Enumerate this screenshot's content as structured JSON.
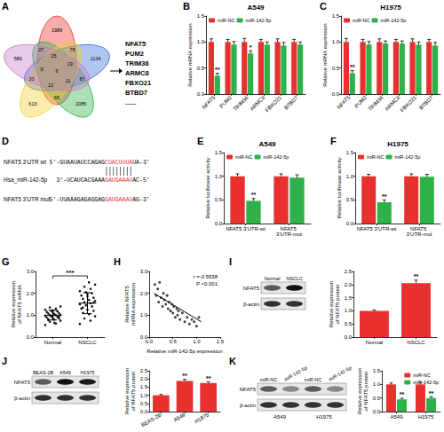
{
  "venn": {
    "panel": "A",
    "counts": [
      1989,
      1134,
      1085,
      613,
      580,
      78,
      87,
      65,
      33,
      27,
      25,
      19,
      11,
      12,
      9,
      6
    ],
    "genes": [
      "NFAT5",
      "PUM2",
      "TRIM36",
      "ARMC8",
      "FBXO21",
      "BTBD7",
      "......"
    ]
  },
  "sequence": {
    "panel": "D",
    "rows": [
      {
        "label": "NFAT5 3'UTR wt",
        "segments": [
          {
            "text": "5'-GUAAUAUCCAGAG"
          },
          {
            "text": "CUACUUUA",
            "color": "#e8312f"
          },
          {
            "text": "UA-3'"
          }
        ]
      },
      {
        "label": "Hsa_miR-142-5p",
        "segments": [
          {
            "text": "3'-UCAUCACGAAA"
          },
          {
            "text": "GAUGAAAU",
            "color": "#e8312f"
          },
          {
            "text": "AC-5'"
          }
        ]
      },
      {
        "label": "NFAT5 3'UTR mut",
        "segments": [
          {
            "text": "5'-UUAAAGAGAGGAG"
          },
          {
            "text": "GAUGAAAU",
            "color": "#e8312f"
          },
          {
            "text": "AG-3'"
          }
        ]
      }
    ]
  },
  "chart_data": [
    {
      "panel": "B",
      "type": "bar",
      "title": "A549",
      "categories": [
        "NFAT5",
        "PUM2",
        "TRIM36",
        "ARMC8",
        "FBXO21",
        "BTBD7"
      ],
      "ylabel": "Relative mRNA expression",
      "ylim": [
        0,
        1.5
      ],
      "yticks": [
        {
          "value": 0,
          "label": "0.0"
        },
        0.5,
        {
          "value": 1,
          "label": "1.0"
        },
        1.5
      ],
      "legend": "upper left",
      "series": [
        {
          "name": "miR-NC",
          "color": "#e8312f",
          "values": [
            1,
            1,
            1,
            1,
            1,
            1
          ],
          "errors": [
            0.06,
            0.05,
            0.07,
            0.05,
            0.06,
            0.05
          ]
        },
        {
          "name": "miR-142-5p",
          "color": "#2fb14a",
          "values": [
            0.35,
            0.95,
            0.78,
            0.95,
            0.93,
            0.95
          ],
          "errors": [
            0.05,
            0.06,
            0.05,
            0.05,
            0.06,
            0.05
          ],
          "significance": [
            "**",
            null,
            "*",
            null,
            null,
            null
          ]
        }
      ]
    },
    {
      "panel": "C",
      "type": "bar",
      "title": "H1975",
      "categories": [
        "NFAT5",
        "PUM2",
        "TRIM36",
        "ARMC8",
        "FBXO21",
        "BTBD7"
      ],
      "ylabel": "Relative mRNA expression",
      "ylim": [
        0,
        1.5
      ],
      "yticks": [
        {
          "value": 0,
          "label": "0.0"
        },
        0.5,
        {
          "value": 1,
          "label": "1.0"
        },
        1.5
      ],
      "legend": "upper left",
      "series": [
        {
          "name": "miR-NC",
          "color": "#e8312f",
          "values": [
            1,
            1,
            1,
            1,
            1,
            1
          ],
          "errors": [
            0.07,
            0.05,
            0.06,
            0.05,
            0.06,
            0.05
          ]
        },
        {
          "name": "miR-142-5p",
          "color": "#2fb14a",
          "values": [
            0.4,
            0.95,
            0.97,
            0.97,
            0.95,
            0.93
          ],
          "errors": [
            0.05,
            0.06,
            0.05,
            0.05,
            0.05,
            0.06
          ],
          "significance": [
            "**",
            null,
            null,
            null,
            null,
            null
          ]
        }
      ]
    },
    {
      "panel": "E",
      "type": "bar",
      "title": "A549",
      "categories": [
        "NFAT5 3'UTR-wt",
        "NFAT5 3'UTR-mut"
      ],
      "ylabel": "Relative luciferase activity",
      "ylim": [
        0,
        1.5
      ],
      "yticks": [
        {
          "value": 0,
          "label": "0.0"
        },
        0.5,
        {
          "value": 1,
          "label": "1.0"
        },
        1.5
      ],
      "legend": "upper left",
      "series": [
        {
          "name": "miR-NC",
          "color": "#e8312f",
          "values": [
            1,
            1
          ],
          "errors": [
            0.05,
            0.05
          ]
        },
        {
          "name": "miR-142-5p",
          "color": "#2fb14a",
          "values": [
            0.48,
            0.97
          ],
          "errors": [
            0.05,
            0.06
          ],
          "significance": [
            "**",
            null
          ]
        }
      ]
    },
    {
      "panel": "F",
      "type": "bar",
      "title": "H1975",
      "categories": [
        "NFAT5 3'UTR-wt",
        "NFAT5 3'UTR-mut"
      ],
      "ylabel": "Relative luciferase activity",
      "ylim": [
        0,
        1.5
      ],
      "yticks": [
        {
          "value": 0,
          "label": "0.0"
        },
        0.5,
        {
          "value": 1,
          "label": "1.0"
        },
        1.5
      ],
      "legend": "upper left",
      "series": [
        {
          "name": "miR-NC",
          "color": "#e8312f",
          "values": [
            1,
            1
          ],
          "errors": [
            0.04,
            0.05
          ]
        },
        {
          "name": "miR-142-5p",
          "color": "#2fb14a",
          "values": [
            0.45,
            0.99
          ],
          "errors": [
            0.05,
            0.05
          ],
          "significance": [
            "**",
            null
          ]
        }
      ]
    },
    {
      "panel": "G",
      "type": "scatter",
      "categories": [
        "Normal",
        "NSCLC"
      ],
      "ylabel": "Relative expression\nof NFAT5 mRNA",
      "ylim": [
        0,
        3
      ],
      "yticks": [
        {
          "value": 0,
          "label": "0.0"
        },
        {
          "value": 1,
          "label": "1.0"
        },
        {
          "value": 2,
          "label": "2.0"
        },
        {
          "value": 3,
          "label": "3.0"
        }
      ],
      "color": "#111111",
      "values": [
        [
          0.55,
          0.62,
          0.7,
          0.75,
          0.8,
          0.82,
          0.85,
          0.88,
          0.9,
          0.92,
          0.95,
          0.97,
          1.0,
          1.0,
          1.02,
          1.05,
          1.08,
          1.1,
          1.12,
          1.15,
          1.18,
          1.2,
          1.25,
          1.3,
          1.35,
          1.4,
          0.65,
          0.78,
          0.93,
          1.22
        ],
        [
          0.6,
          0.75,
          0.85,
          0.95,
          1.05,
          1.1,
          1.2,
          1.25,
          1.3,
          1.4,
          1.45,
          1.5,
          1.55,
          1.6,
          1.65,
          1.7,
          1.75,
          1.8,
          1.85,
          1.9,
          2.0,
          2.05,
          2.1,
          2.2,
          2.3,
          2.4,
          2.5,
          1.35,
          1.58,
          1.95
        ]
      ],
      "means": [
        1.0,
        1.55
      ],
      "sd": [
        0.22,
        0.48
      ],
      "significance": "***"
    },
    {
      "panel": "H",
      "type": "scatter",
      "xlabel": "Relative miR-142-5p expression",
      "ylabel": "Relative NFAT5\nmRNA expression",
      "xlim": [
        0,
        1.5
      ],
      "xticks": [
        {
          "value": 0,
          "label": "0.0"
        },
        0.5,
        {
          "value": 1,
          "label": "1.0"
        },
        1.5
      ],
      "ylim": [
        0,
        3
      ],
      "yticks": [
        {
          "value": 0,
          "label": "0.0"
        },
        {
          "value": 1,
          "label": "1.0"
        },
        {
          "value": 2,
          "label": "2.0"
        },
        {
          "value": 3,
          "label": "3.0"
        }
      ],
      "color": "#111111",
      "x": [
        0.12,
        0.15,
        0.18,
        0.2,
        0.22,
        0.25,
        0.28,
        0.3,
        0.32,
        0.35,
        0.38,
        0.4,
        0.42,
        0.45,
        0.48,
        0.5,
        0.52,
        0.55,
        0.58,
        0.6,
        0.62,
        0.65,
        0.7,
        0.75,
        0.8,
        0.85,
        0.9,
        0.95,
        1.0,
        1.05
      ],
      "values": [
        2.4,
        1.9,
        2.2,
        1.6,
        2.5,
        1.8,
        1.4,
        2.0,
        1.7,
        1.5,
        1.9,
        1.3,
        1.6,
        1.2,
        1.5,
        1.1,
        1.4,
        0.9,
        1.3,
        1.0,
        1.2,
        0.8,
        1.1,
        0.7,
        0.9,
        0.6,
        0.8,
        0.7,
        0.5,
        0.9
      ],
      "fit": {
        "x": [
          0.1,
          1.1
        ],
        "y": [
          2.0,
          0.7
        ]
      },
      "annotations": [
        "r =-0.5538",
        "P <0.001"
      ]
    },
    {
      "panel": "I",
      "type": "bar",
      "categories": [
        "Normal",
        "NSCLC"
      ],
      "ylabel": "Relative expression\nof NFAT5 protein",
      "ylim": [
        0,
        2.5
      ],
      "yticks": [
        {
          "value": 0,
          "label": "0.0"
        },
        0.5,
        {
          "value": 1,
          "label": "1.0"
        },
        1.5,
        {
          "value": 2,
          "label": "2.0"
        },
        2.5
      ],
      "color": "#e8312f",
      "values": [
        1,
        2.05
      ],
      "errors": [
        0.03,
        0.12
      ],
      "significance": [
        null,
        "**"
      ],
      "blot": {
        "lanes": [
          "Normal",
          "NSCLC"
        ],
        "rows": [
          "NFAT5",
          "β-actin"
        ]
      }
    },
    {
      "panel": "J",
      "type": "bar",
      "categories": [
        "BEAS-2B",
        "A549",
        "H1975"
      ],
      "ylabel": "Relative expression\nof NFAT5 protein",
      "ylim": [
        0,
        2.5
      ],
      "yticks": [
        {
          "value": 0,
          "label": "0.0"
        },
        0.5,
        {
          "value": 1,
          "label": "1.0"
        },
        1.5,
        {
          "value": 2,
          "label": "2.0"
        },
        2.5
      ],
      "color": "#e8312f",
      "values": [
        1,
        1.88,
        1.75
      ],
      "errors": [
        0.05,
        0.1,
        0.08
      ],
      "significance": [
        null,
        "**",
        "**"
      ],
      "blot": {
        "lanes": [
          "BEAS-2B",
          "A549",
          "H1975"
        ],
        "rows": [
          "NFAT5",
          "β-actin"
        ]
      }
    },
    {
      "panel": "K",
      "type": "bar",
      "categories": [
        "A549",
        "H1975"
      ],
      "ylabel": "Relative expression\nof NFAT5 protein",
      "ylim": [
        0,
        1.5
      ],
      "yticks": [
        {
          "value": 0,
          "label": "0.0"
        },
        0.5,
        {
          "value": 1,
          "label": "1.0"
        },
        1.5
      ],
      "legend": "upper right",
      "series": [
        {
          "name": "miR-NC",
          "color": "#e8312f",
          "values": [
            1,
            1
          ],
          "errors": [
            0.05,
            0.07
          ]
        },
        {
          "name": "miR-142-5p",
          "color": "#2fb14a",
          "values": [
            0.45,
            0.5
          ],
          "errors": [
            0.04,
            0.05
          ],
          "significance": [
            "**",
            "**"
          ]
        }
      ],
      "blot": {
        "lanes": [
          "miR-NC",
          "miR-142-5p",
          "miR-NC",
          "miR-142-5p"
        ],
        "groups": [
          "A549",
          "H1975"
        ],
        "rows": [
          "NFAT5",
          "β-actin"
        ]
      }
    }
  ]
}
